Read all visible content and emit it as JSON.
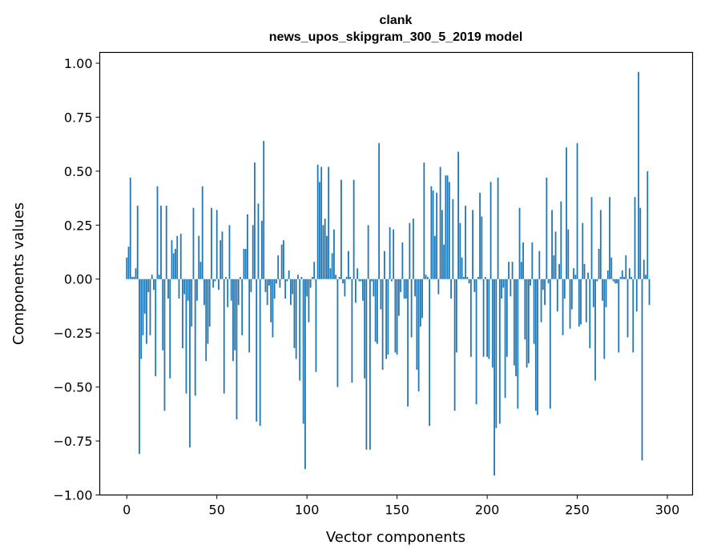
{
  "chart_data": {
    "type": "bar",
    "title": "clank",
    "subtitle": "news_upos_skipgram_300_5_2019 model",
    "xlabel": "Vector components",
    "ylabel": "Components values",
    "xlim": [
      -15,
      314
    ],
    "ylim": [
      -1.0,
      1.05
    ],
    "xticks": [
      0,
      50,
      100,
      150,
      200,
      250,
      300
    ],
    "xtick_labels": [
      "0",
      "50",
      "100",
      "150",
      "200",
      "250",
      "300"
    ],
    "yticks": [
      -1.0,
      -0.75,
      -0.5,
      -0.25,
      0.0,
      0.25,
      0.5,
      0.75,
      1.0
    ],
    "ytick_labels": [
      "−1.00",
      "−0.75",
      "−0.50",
      "−0.25",
      "0.00",
      "0.25",
      "0.50",
      "0.75",
      "1.00"
    ],
    "bar_color": "#1f77b4",
    "grid": false,
    "values": [
      0.1,
      0.15,
      0.47,
      0.01,
      0.01,
      0.05,
      0.34,
      -0.81,
      -0.37,
      -0.26,
      -0.16,
      -0.3,
      -0.06,
      -0.26,
      0.02,
      -0.05,
      -0.45,
      0.43,
      0.02,
      0.34,
      -0.33,
      -0.61,
      0.34,
      -0.09,
      -0.46,
      0.18,
      0.12,
      0.14,
      0.2,
      -0.09,
      0.21,
      -0.32,
      -0.07,
      -0.53,
      -0.1,
      -0.78,
      -0.22,
      0.33,
      -0.54,
      -0.1,
      0.2,
      0.08,
      0.43,
      -0.12,
      -0.38,
      -0.3,
      -0.22,
      0.33,
      -0.04,
      -0.01,
      0.32,
      -0.05,
      0.18,
      0.22,
      -0.53,
      0.01,
      -0.13,
      0.25,
      -0.1,
      -0.38,
      -0.33,
      -0.65,
      -0.12,
      0.01,
      -0.26,
      0.14,
      0.14,
      0.3,
      -0.34,
      -0.06,
      0.25,
      0.54,
      -0.66,
      0.35,
      -0.68,
      0.27,
      0.64,
      -0.06,
      -0.12,
      -0.03,
      -0.2,
      -0.27,
      -0.09,
      -0.02,
      0.11,
      -0.04,
      0.16,
      0.18,
      -0.09,
      -0.01,
      0.04,
      -0.12,
      -0.07,
      -0.32,
      -0.37,
      0.02,
      -0.47,
      0.01,
      -0.67,
      -0.88,
      -0.08,
      -0.2,
      -0.04,
      0.01,
      0.08,
      -0.43,
      0.53,
      0.45,
      0.52,
      0.25,
      0.28,
      0.2,
      0.52,
      0.05,
      0.12,
      0.23,
      0.02,
      -0.5,
      0.01,
      0.46,
      -0.02,
      -0.08,
      0.01,
      0.13,
      0.01,
      -0.48,
      0.46,
      -0.11,
      0.05,
      -0.01,
      -0.01,
      -0.1,
      -0.46,
      -0.79,
      0.25,
      -0.79,
      -0.01,
      -0.08,
      -0.29,
      -0.3,
      0.63,
      -0.14,
      -0.42,
      0.13,
      -0.37,
      -0.35,
      0.24,
      -0.01,
      0.23,
      -0.34,
      -0.35,
      -0.17,
      -0.06,
      0.17,
      -0.09,
      -0.09,
      -0.59,
      0.26,
      -0.27,
      0.28,
      -0.08,
      -0.42,
      -0.52,
      -0.22,
      -0.18,
      0.54,
      0.02,
      0.01,
      -0.68,
      0.43,
      0.41,
      0.2,
      0.4,
      -0.07,
      0.52,
      0.32,
      0.16,
      0.48,
      0.48,
      0.45,
      -0.09,
      0.37,
      -0.61,
      -0.34,
      0.59,
      0.26,
      0.1,
      0.01,
      0.34,
      0.01,
      -0.02,
      -0.36,
      0.32,
      -0.06,
      -0.58,
      0.01,
      0.4,
      0.29,
      -0.36,
      0.01,
      -0.36,
      -0.37,
      0.45,
      -0.41,
      -0.91,
      -0.69,
      0.47,
      -0.67,
      -0.09,
      -0.04,
      -0.55,
      -0.36,
      0.08,
      -0.08,
      0.08,
      -0.4,
      -0.45,
      -0.6,
      0.33,
      0.08,
      0.17,
      -0.28,
      -0.41,
      -0.39,
      -0.03,
      0.17,
      -0.3,
      -0.61,
      -0.63,
      0.13,
      -0.2,
      -0.05,
      -0.12,
      0.47,
      -0.02,
      -0.6,
      0.32,
      0.11,
      0.22,
      -0.15,
      0.07,
      0.36,
      -0.26,
      -0.09,
      0.61,
      0.23,
      -0.23,
      -0.14,
      0.05,
      0.02,
      0.63,
      -0.22,
      -0.21,
      0.26,
      0.07,
      -0.2,
      0.03,
      -0.32,
      0.38,
      -0.13,
      -0.47,
      -0.01,
      0.14,
      0.32,
      -0.1,
      -0.37,
      -0.13,
      0.04,
      0.38,
      0.1,
      -0.01,
      -0.02,
      -0.02,
      -0.34,
      0.01,
      0.04,
      0.01,
      0.11,
      -0.27,
      0.05,
      0.01,
      -0.34,
      0.38,
      -0.15,
      0.96,
      0.33,
      -0.84,
      0.09,
      0.02,
      0.5,
      -0.12
    ]
  }
}
